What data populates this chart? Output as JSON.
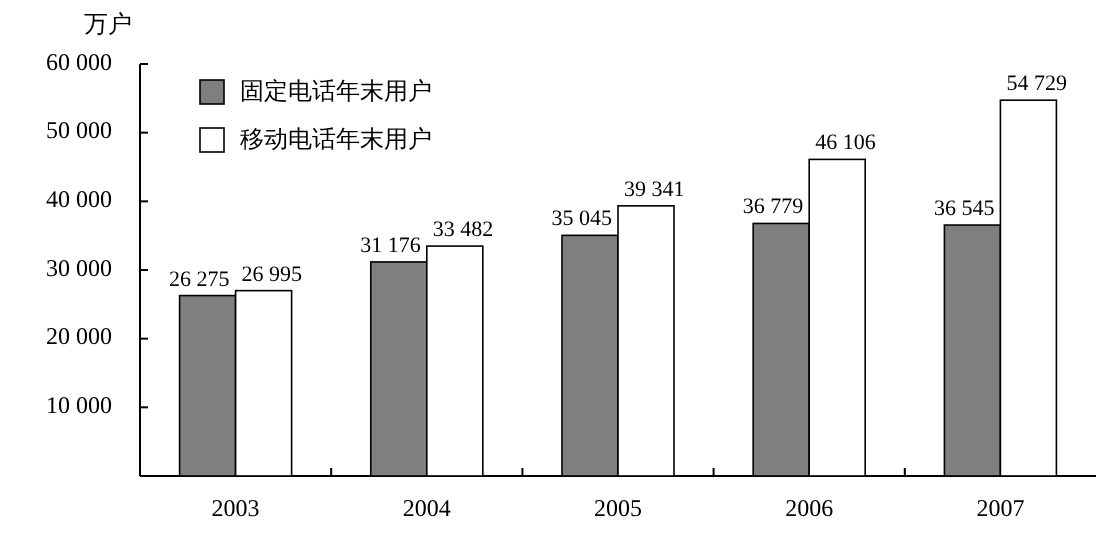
{
  "chart_data": {
    "type": "bar",
    "ylabel": "万户",
    "categories": [
      "2003",
      "2004",
      "2005",
      "2006",
      "2007"
    ],
    "series": [
      {
        "name": "固定电话年末用户",
        "color": "#7f7f7f",
        "values": [
          26275,
          31176,
          35045,
          36779,
          36545
        ],
        "value_labels": [
          "26 275",
          "31 176",
          "35 045",
          "36 779",
          "36 545"
        ]
      },
      {
        "name": "移动电话年末用户",
        "color": "#ffffff",
        "values": [
          26995,
          33482,
          39341,
          46106,
          54729
        ],
        "value_labels": [
          "26 995",
          "33 482",
          "39 341",
          "46 106",
          "54 729"
        ]
      }
    ],
    "ylim": [
      0,
      60000
    ],
    "yticks": [
      {
        "value": 0,
        "label": null
      },
      {
        "value": 10000,
        "label": "10 000"
      },
      {
        "value": 20000,
        "label": "20 000"
      },
      {
        "value": 30000,
        "label": "30 000"
      },
      {
        "value": 40000,
        "label": "40 000"
      },
      {
        "value": 50000,
        "label": "50 000"
      },
      {
        "value": 60000,
        "label": "60 000"
      }
    ],
    "legend": "top left",
    "grid": false
  }
}
